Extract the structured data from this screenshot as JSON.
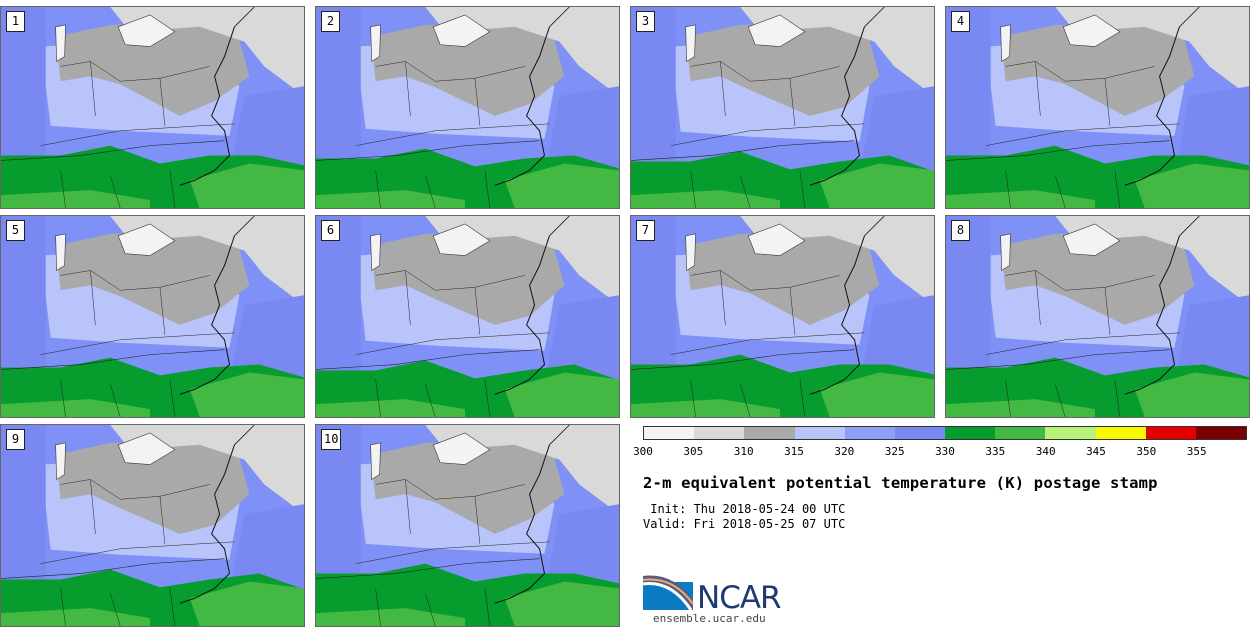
{
  "panels": [
    "1",
    "2",
    "3",
    "4",
    "5",
    "6",
    "7",
    "8",
    "9",
    "10"
  ],
  "colorbar": {
    "colors": [
      "#f3f3f3",
      "#d9d9d9",
      "#a9a9a9",
      "#b8c4fa",
      "#8f9ff8",
      "#7a89f2",
      "#069c2e",
      "#43b843",
      "#b6f27a",
      "#f8f800",
      "#e40000",
      "#7a0000"
    ],
    "ticks": [
      "300",
      "305",
      "310",
      "315",
      "320",
      "325",
      "330",
      "335",
      "340",
      "345",
      "350",
      "355"
    ]
  },
  "title": "2-m equivalent potential temperature (K) postage stamp",
  "init": " Init: Thu 2018-05-24 00 UTC",
  "valid": "Valid: Fri 2018-05-25 07 UTC",
  "logo_text": "NCAR",
  "url": "ensemble.ucar.edu"
}
